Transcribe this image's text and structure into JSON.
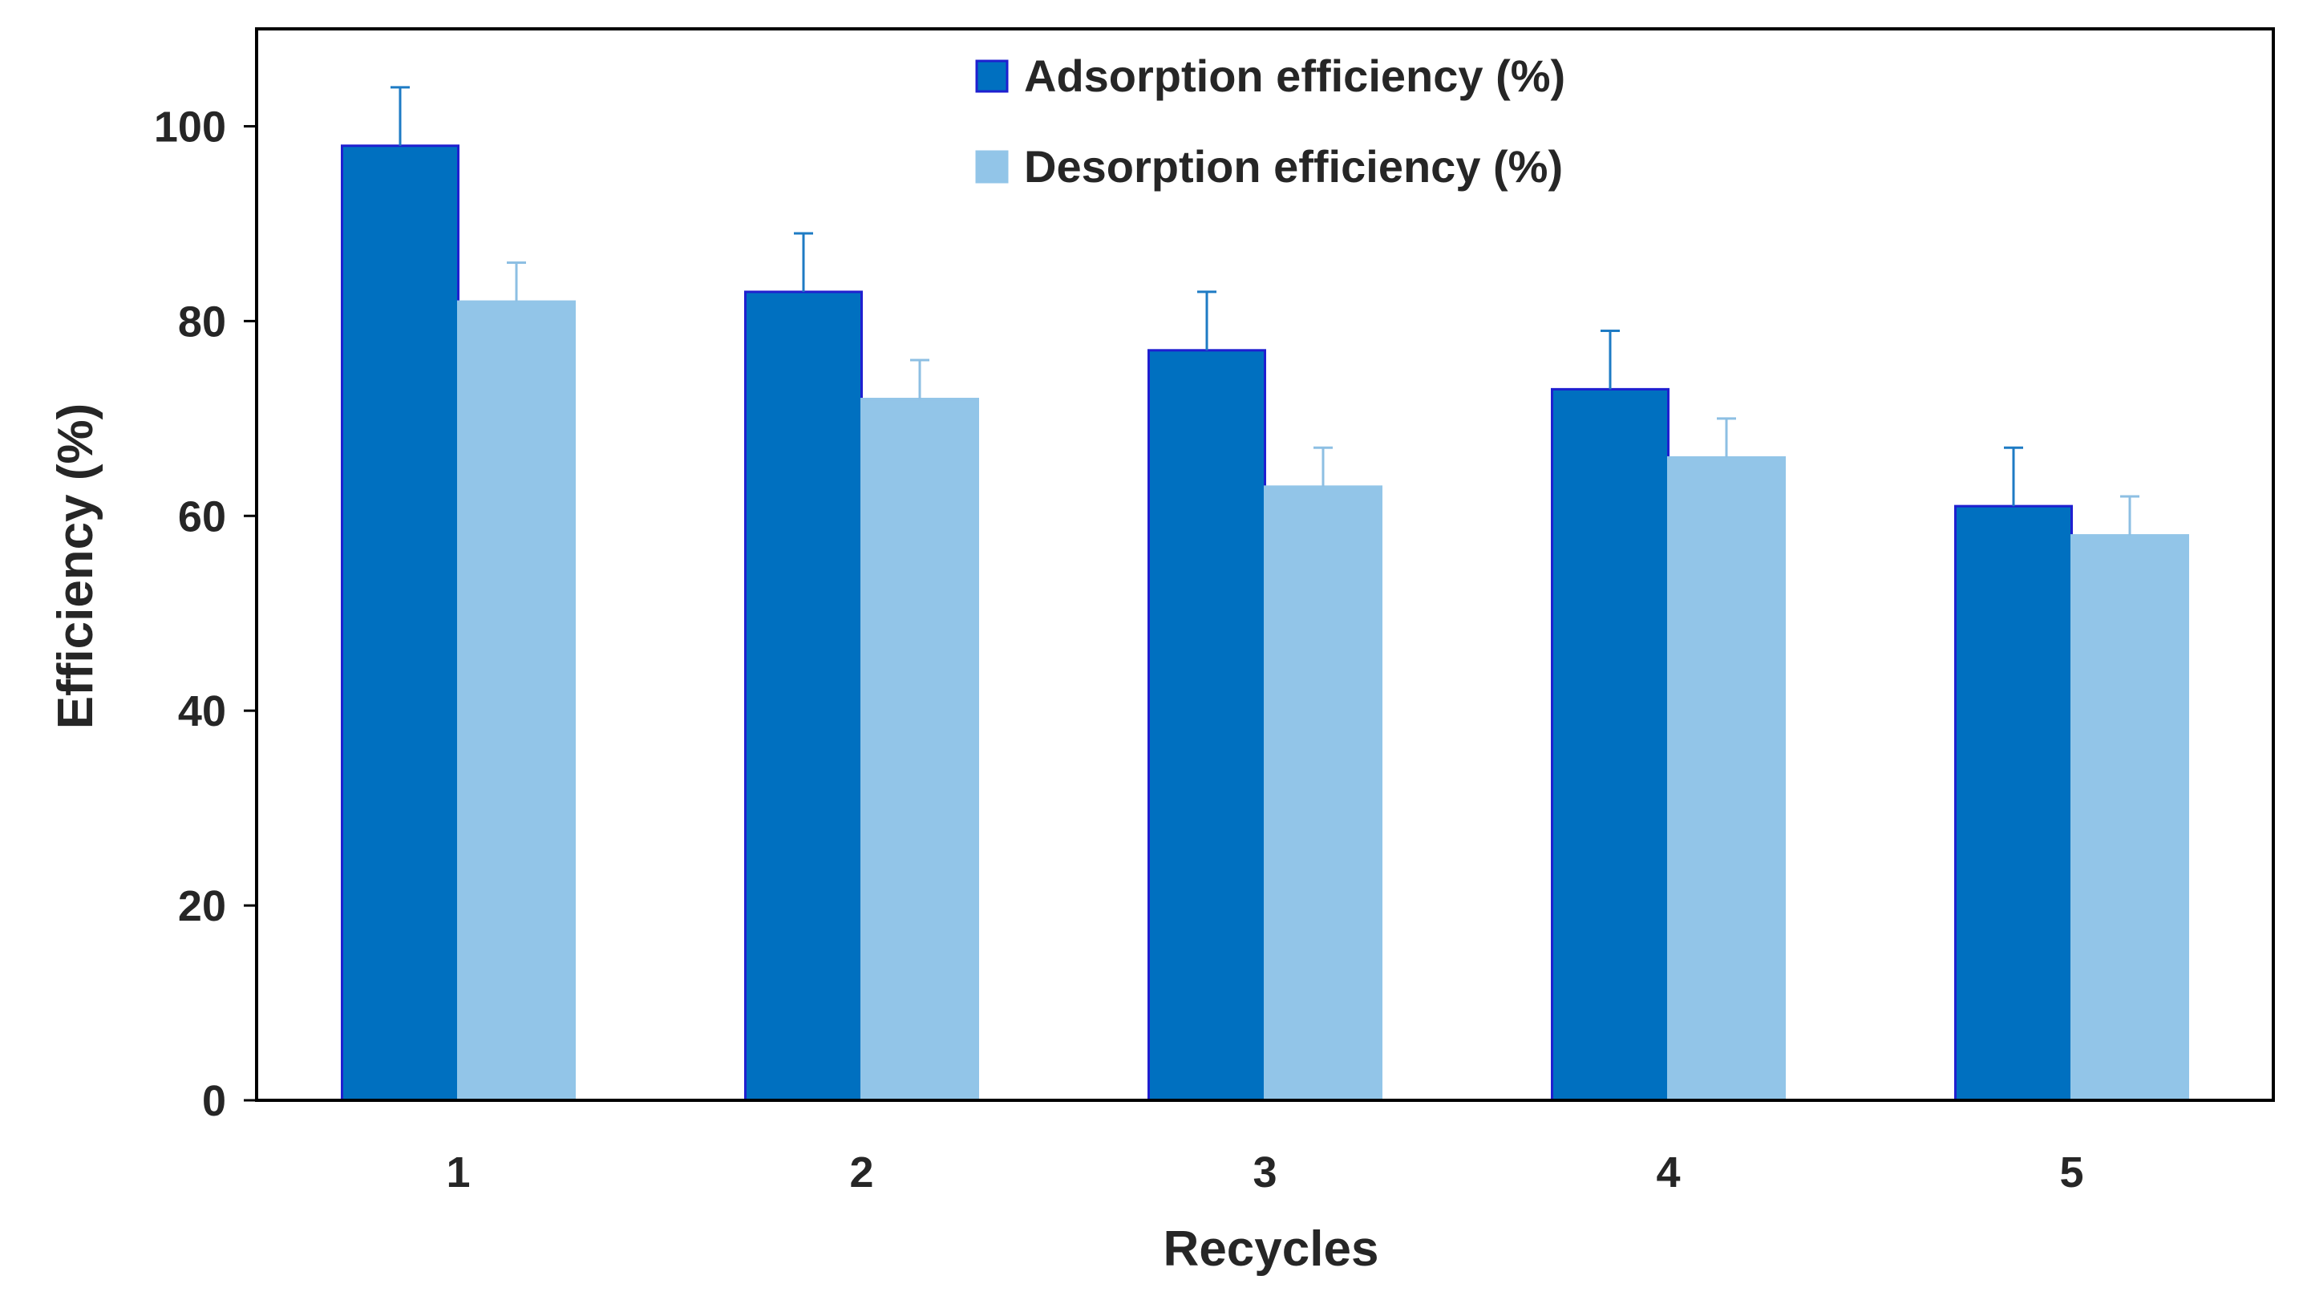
{
  "chart_data": {
    "type": "bar",
    "title": "",
    "xlabel": "Recycles",
    "ylabel": "Efficiency (%)",
    "categories": [
      "1",
      "2",
      "3",
      "4",
      "5"
    ],
    "ylim": [
      0,
      110
    ],
    "yticks": [
      0,
      20,
      40,
      60,
      80,
      100
    ],
    "grid": false,
    "legend_position": "top-center",
    "series": [
      {
        "name": "Adsorption efficiency (%)",
        "values": [
          98,
          83,
          77,
          73,
          61
        ],
        "errors": [
          6,
          6,
          6,
          6,
          6
        ],
        "color": "#0070C0",
        "edge_color": "#1F1FD0"
      },
      {
        "name": "Desorption efficiency (%)",
        "values": [
          82,
          72,
          63,
          66,
          58
        ],
        "errors": [
          4,
          4,
          4,
          4,
          4
        ],
        "color": "#92C5E8",
        "edge_color": "#92C5E8"
      }
    ]
  }
}
